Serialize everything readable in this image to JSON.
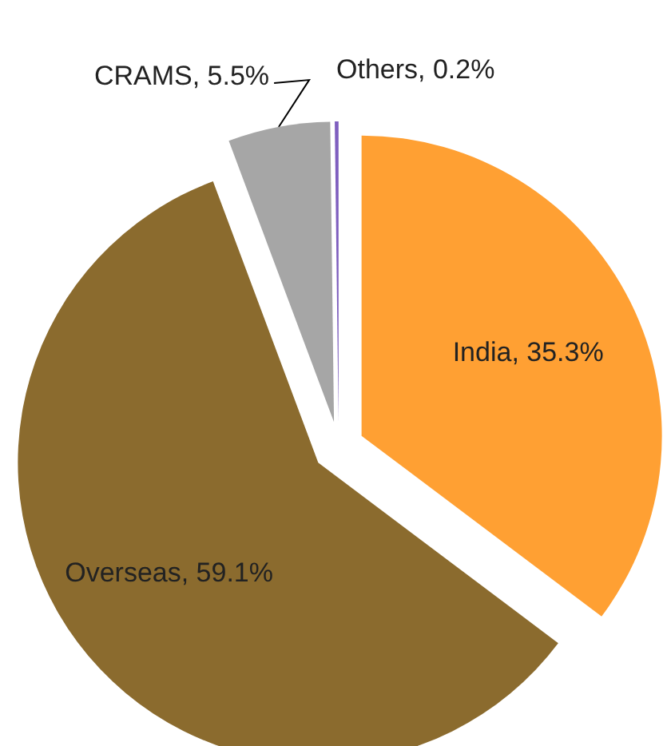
{
  "chart_data": {
    "type": "pie",
    "categories": [
      "India",
      "Overseas",
      "CRAMS",
      "Others"
    ],
    "values": [
      35.3,
      59.1,
      5.5,
      0.2
    ],
    "value_labels": [
      "35.3%",
      "59.1%",
      "5.5%",
      "0.2%"
    ],
    "colors": [
      "#ffa033",
      "#8b6b2e",
      "#a6a6a6",
      "#7f5fbf"
    ]
  }
}
